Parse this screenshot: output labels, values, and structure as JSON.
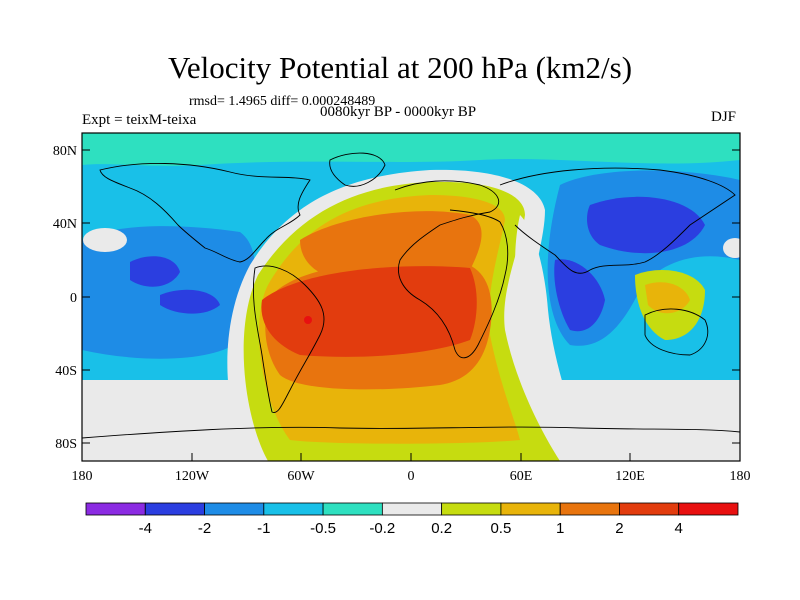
{
  "title": "Velocity Potential at 200 hPa (km2/s)",
  "stats_line": "rmsd= 1.4965 diff= 0.000248489",
  "experiment_label": "Expt = teixM-teixa",
  "period_label": "0080kyr BP - 0000kyr BP",
  "season_label": "DJF",
  "chart_data": {
    "type": "heatmap",
    "projection": "cylindrical equidistant",
    "x_ticks": [
      "180",
      "120W",
      "60W",
      "0",
      "60E",
      "120E",
      "180"
    ],
    "y_ticks": [
      "80N",
      "40N",
      "0",
      "40S",
      "80S"
    ],
    "lon_range": [
      -180,
      180
    ],
    "lat_range": [
      -90,
      90
    ],
    "colorbar": {
      "levels": [
        "-4",
        "-2",
        "-1",
        "-0.5",
        "-0.2",
        "0.2",
        "0.5",
        "1",
        "2",
        "4"
      ],
      "colors": [
        "#8b2be2",
        "#2b3ee0",
        "#1e8ce6",
        "#19c0e8",
        "#2ee0c0",
        "#eaeaea",
        "#c6dc10",
        "#e8b40a",
        "#e8740e",
        "#e23c0e",
        "#e81010"
      ]
    },
    "regions": [
      {
        "name": "Atlantic-Africa-South America positive anomaly",
        "level": "1 to 4"
      },
      {
        "name": "Western Pacific / Asia negative anomaly",
        "level": "-2 to -4"
      },
      {
        "name": "Central Pacific negative anomaly",
        "level": "-1 to -2"
      }
    ]
  }
}
